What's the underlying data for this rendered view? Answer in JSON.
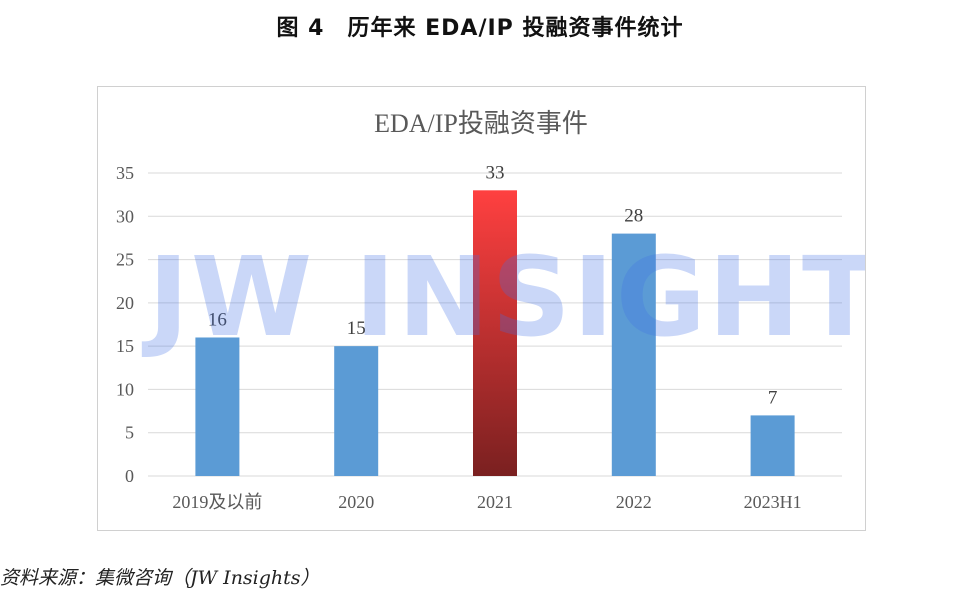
{
  "figure_title": "图 4　历年来 EDA/IP 投融资事件统计",
  "source_note": "资料来源：集微咨询（JW Insights）",
  "watermark": "JW INSIGHTS",
  "chart_data": {
    "type": "bar",
    "title": "EDA/IP投融资事件",
    "categories": [
      "2019及以前",
      "2020",
      "2021",
      "2022",
      "2023H1"
    ],
    "values": [
      16,
      15,
      33,
      28,
      7
    ],
    "data_labels": [
      "16",
      "15",
      "33",
      "28",
      "7"
    ],
    "ylim": [
      0,
      35
    ],
    "yticks": [
      0,
      5,
      10,
      15,
      20,
      25,
      30,
      35
    ],
    "grid": true,
    "legend": "none",
    "colors": {
      "bar": "#5b9bd5",
      "highlight_top": "#ff4040",
      "highlight_bottom": "#7a2020",
      "gridline": "#d9d9d9"
    },
    "highlight_category": "2021"
  }
}
